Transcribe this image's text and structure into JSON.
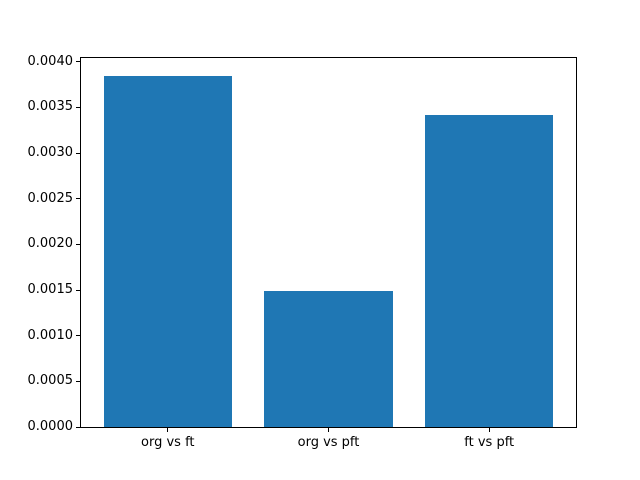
{
  "figure": {
    "background": "#ffffff",
    "spine_color": "#000000",
    "tick_color": "#000000"
  },
  "chart_data": {
    "type": "bar",
    "title": "",
    "xlabel": "",
    "ylabel": "",
    "categories": [
      "org vs ft",
      "org vs pft",
      "ft vs pft"
    ],
    "x_positions": [
      0,
      1,
      2
    ],
    "values": [
      0.00385,
      0.00149,
      0.00342
    ],
    "bar_color": "#1f77b4",
    "bar_width": 0.8,
    "xlim": [
      -0.54,
      2.54
    ],
    "ylim": [
      0,
      0.004042
    ],
    "yticks": [
      "0.0000",
      "0.0005",
      "0.0010",
      "0.0015",
      "0.0020",
      "0.0025",
      "0.0030",
      "0.0035",
      "0.0040"
    ],
    "grid": false,
    "legend": null
  }
}
